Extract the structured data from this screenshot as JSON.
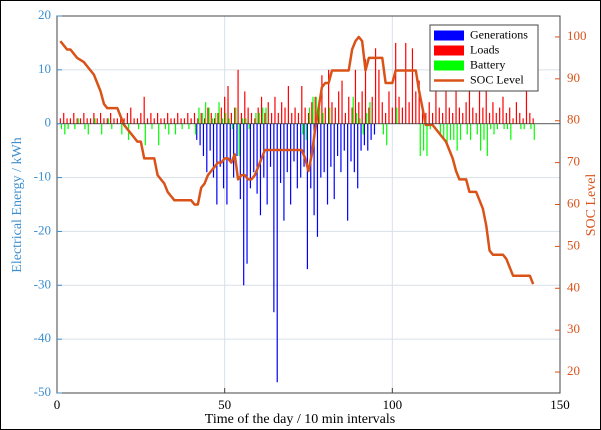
{
  "chart_data": {
    "type": "bar",
    "xlabel": "Time of the day / 10 min intervals",
    "ylabel": "Electrical Energy / kWh",
    "y2label": "SOC Level",
    "xlim": [
      0,
      150
    ],
    "xticks": [
      0,
      50,
      100,
      150
    ],
    "ylim": [
      -50,
      20
    ],
    "yticks": [
      -50,
      -40,
      -30,
      -20,
      -10,
      0,
      10,
      20
    ],
    "y2lim": [
      15,
      105
    ],
    "y2ticks": [
      20,
      30,
      40,
      50,
      60,
      70,
      80,
      90,
      100
    ],
    "grid": true,
    "legend": "upper right",
    "x": [
      1,
      2,
      3,
      4,
      5,
      6,
      7,
      8,
      9,
      10,
      11,
      12,
      13,
      14,
      15,
      16,
      17,
      18,
      19,
      20,
      21,
      22,
      23,
      24,
      25,
      26,
      27,
      28,
      29,
      30,
      31,
      32,
      33,
      34,
      35,
      36,
      37,
      38,
      39,
      40,
      41,
      42,
      43,
      44,
      45,
      46,
      47,
      48,
      49,
      50,
      51,
      52,
      53,
      54,
      55,
      56,
      57,
      58,
      59,
      60,
      61,
      62,
      63,
      64,
      65,
      66,
      67,
      68,
      69,
      70,
      71,
      72,
      73,
      74,
      75,
      76,
      77,
      78,
      79,
      80,
      81,
      82,
      83,
      84,
      85,
      86,
      87,
      88,
      89,
      90,
      91,
      92,
      93,
      94,
      95,
      96,
      97,
      98,
      99,
      100,
      101,
      102,
      103,
      104,
      105,
      106,
      107,
      108,
      109,
      110,
      111,
      112,
      113,
      114,
      115,
      116,
      117,
      118,
      119,
      120,
      121,
      122,
      123,
      124,
      125,
      126,
      127,
      128,
      129,
      130,
      131,
      132,
      133,
      134,
      135,
      136,
      137,
      138,
      139,
      140,
      141,
      142
    ],
    "series": [
      {
        "name": "Generations",
        "color": "#0000ff",
        "values": [
          0,
          0,
          0,
          0,
          0,
          0,
          0,
          0,
          0,
          0,
          0,
          0,
          0,
          0,
          0,
          0,
          0,
          0,
          0,
          0,
          0,
          0,
          0,
          0,
          0,
          0,
          0,
          0,
          0,
          0,
          0,
          0,
          0,
          0,
          0,
          0,
          0,
          0,
          0,
          0,
          0,
          -3,
          -4,
          -6,
          -9,
          -5,
          -10,
          -15,
          -8,
          -12,
          -15,
          -7,
          -10,
          -6,
          -14,
          -30,
          -26,
          -12,
          -9,
          -13,
          -17,
          -10,
          -15,
          -8,
          -35,
          -48,
          -11,
          -18,
          -9,
          -15,
          -7,
          -12,
          -10,
          -8,
          -27,
          -12,
          -17,
          -21,
          -10,
          -9,
          -15,
          -8,
          -14,
          -6,
          -9,
          -5,
          -18,
          -7,
          -9,
          -12,
          -5,
          -4,
          -5,
          -3,
          -2,
          0,
          0,
          0,
          0,
          0,
          0,
          0,
          0,
          0,
          0,
          0,
          0,
          0,
          0,
          0,
          0,
          0,
          0,
          0,
          0,
          0,
          0,
          0,
          0,
          0,
          0,
          0,
          0,
          0,
          0,
          0,
          0,
          0,
          0,
          0,
          0,
          0,
          0,
          0,
          0,
          0,
          0,
          0,
          0,
          0,
          0,
          0
        ]
      },
      {
        "name": "Loads",
        "color": "#ff0000",
        "values": [
          1,
          2,
          1,
          1,
          2,
          1,
          1,
          2,
          1,
          1,
          2,
          1,
          2,
          1,
          1,
          2,
          1,
          1,
          1,
          1,
          2,
          3,
          1,
          1,
          2,
          5,
          1,
          2,
          1,
          2,
          1,
          1,
          2,
          1,
          1,
          2,
          1,
          1,
          2,
          1,
          2,
          1,
          2,
          1,
          3,
          2,
          1,
          2,
          3,
          5,
          7,
          2,
          3,
          10,
          2,
          6,
          3,
          2,
          1,
          3,
          5,
          2,
          4,
          2,
          5,
          2,
          4,
          3,
          7,
          2,
          3,
          2,
          7,
          3,
          2,
          4,
          5,
          2,
          9,
          3,
          10,
          4,
          3,
          6,
          8,
          2,
          5,
          3,
          10,
          4,
          6,
          12,
          3,
          5,
          14,
          10,
          4,
          2,
          6,
          3,
          15,
          5,
          3,
          15,
          4,
          14,
          6,
          8,
          3,
          2,
          4,
          2,
          10,
          3,
          2,
          7,
          3,
          2,
          8,
          3,
          2,
          4,
          10,
          3,
          2,
          6,
          3,
          10,
          2,
          4,
          2,
          3,
          5,
          2,
          3,
          1,
          4,
          2,
          1,
          10,
          2,
          1
        ]
      },
      {
        "name": "Battery",
        "color": "#00ff00",
        "values": [
          -1,
          -2,
          -1,
          0,
          -1,
          1,
          0,
          -1,
          -2,
          0,
          1,
          0,
          -2,
          0,
          1,
          -1,
          0,
          0,
          -2,
          0,
          -3,
          0,
          0,
          -1,
          0,
          -4,
          0,
          -1,
          0,
          -4,
          0,
          -1,
          -2,
          0,
          -2,
          0,
          -1,
          0,
          -1,
          0,
          -2,
          3,
          2,
          4,
          3,
          1,
          2,
          4,
          1,
          2,
          1,
          -1,
          3,
          -6,
          1,
          1,
          -1,
          0,
          2,
          2,
          3,
          3,
          0,
          0,
          0,
          0,
          0,
          0,
          0,
          0,
          0,
          0,
          -2,
          -3,
          3,
          5,
          5,
          3,
          2,
          0,
          3,
          0,
          0,
          0,
          0,
          0,
          0,
          5,
          2,
          1,
          -2,
          2,
          4,
          0,
          0,
          0,
          -2,
          -4,
          0,
          0,
          3,
          0,
          0,
          0,
          0,
          0,
          0,
          -6,
          -5,
          -6,
          -1,
          0,
          0,
          -2,
          -3,
          -4,
          -3,
          -3,
          -5,
          -3,
          0,
          -2,
          -3,
          0,
          -2,
          -5,
          -3,
          -6,
          -1,
          -2,
          -1,
          0,
          -1,
          -1,
          -3,
          0,
          0,
          -1,
          -1,
          0,
          -1,
          -3
        ]
      },
      {
        "name": "SOC Level",
        "color": "#d95319",
        "type": "line",
        "axis": "y2",
        "values": [
          99,
          98,
          97,
          97,
          96,
          95,
          94.5,
          94,
          93,
          92,
          91,
          89,
          87,
          84,
          83,
          83,
          83,
          83,
          81,
          79,
          78,
          77,
          76,
          75,
          75,
          71,
          71,
          71,
          71,
          67,
          66,
          65,
          63,
          62,
          61,
          61,
          61,
          61,
          61,
          61,
          60,
          60,
          64,
          65,
          67,
          68,
          69,
          70,
          70,
          71,
          71,
          70,
          72,
          66,
          67,
          67,
          66,
          66,
          67,
          69,
          71,
          73,
          73,
          73,
          73,
          73,
          73,
          73,
          73,
          73,
          73,
          73,
          73,
          71,
          68,
          72,
          78,
          83,
          88,
          89,
          89,
          92,
          92,
          92,
          92,
          92,
          92,
          97,
          99,
          100,
          99,
          92,
          95,
          95,
          95,
          95,
          95,
          89,
          89,
          89,
          92,
          92,
          92,
          92,
          92,
          92,
          92,
          87,
          83,
          79,
          79,
          79,
          78,
          77,
          76,
          75,
          73,
          71,
          68,
          66,
          66,
          66,
          63,
          63,
          63,
          61,
          59,
          55,
          49,
          48,
          48,
          48,
          48,
          47,
          45,
          43,
          43,
          43,
          43,
          43,
          43,
          41
        ]
      }
    ]
  }
}
